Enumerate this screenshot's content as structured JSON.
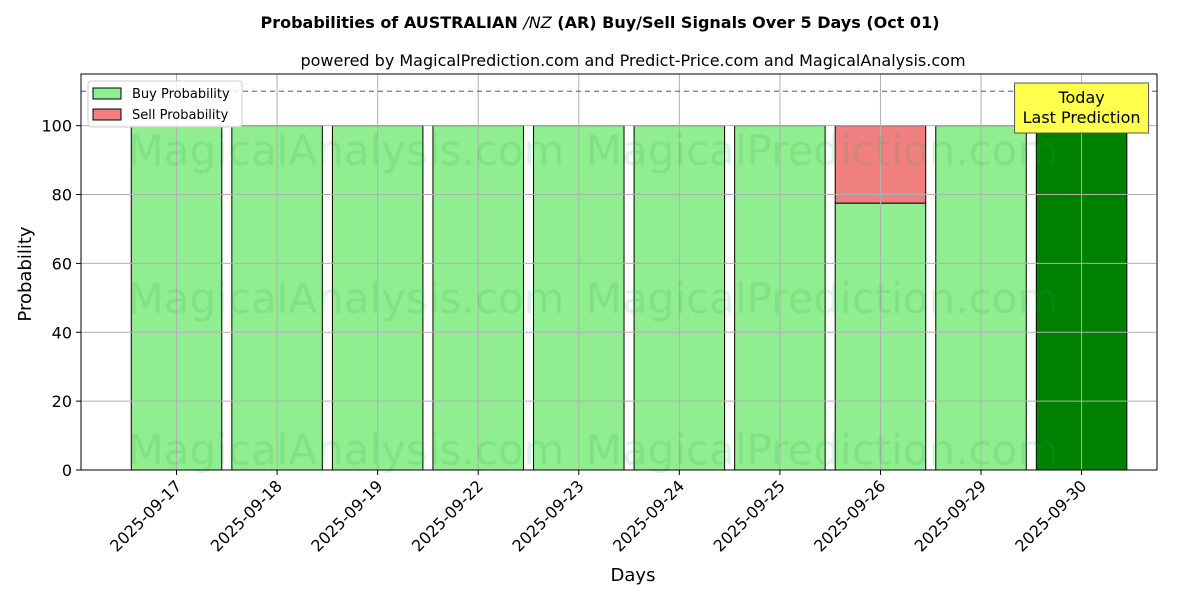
{
  "chart_data": {
    "type": "bar",
    "stacked": true,
    "title_prefix": "Probabilities of AUSTRALIAN ",
    "title_italic": "/NZ",
    "title_suffix": " (AR) Buy/Sell Signals Over 5 Days (Oct 01)",
    "subtitle": "powered by MagicalPrediction.com and Predict-Price.com and MagicalAnalysis.com",
    "xlabel": "Days",
    "ylabel": "Probability",
    "ylim": [
      0,
      115
    ],
    "yticks": [
      0,
      20,
      40,
      60,
      80,
      100
    ],
    "grid": true,
    "legend_position": "top-left",
    "reference_line": 110,
    "categories": [
      "2025-09-17",
      "2025-09-18",
      "2025-09-19",
      "2025-09-22",
      "2025-09-23",
      "2025-09-24",
      "2025-09-25",
      "2025-09-26",
      "2025-09-29",
      "2025-09-30"
    ],
    "series": [
      {
        "name": "Buy Probability",
        "values": [
          100,
          100,
          100,
          100,
          100,
          100,
          100,
          77.5,
          100,
          100
        ],
        "color": "#90ee90"
      },
      {
        "name": "Sell Probability",
        "values": [
          0,
          0,
          0,
          0,
          0,
          0,
          0,
          22.5,
          0,
          0
        ],
        "color": "#f08080"
      }
    ],
    "highlight_index": 9,
    "highlight_color": "#008000",
    "annotation": {
      "line1": "Today",
      "line2": "Last Prediction",
      "bg": "#ffff4d"
    },
    "watermarks": [
      "MagicalAnalysis.com",
      "MagicalPrediction.com"
    ]
  }
}
